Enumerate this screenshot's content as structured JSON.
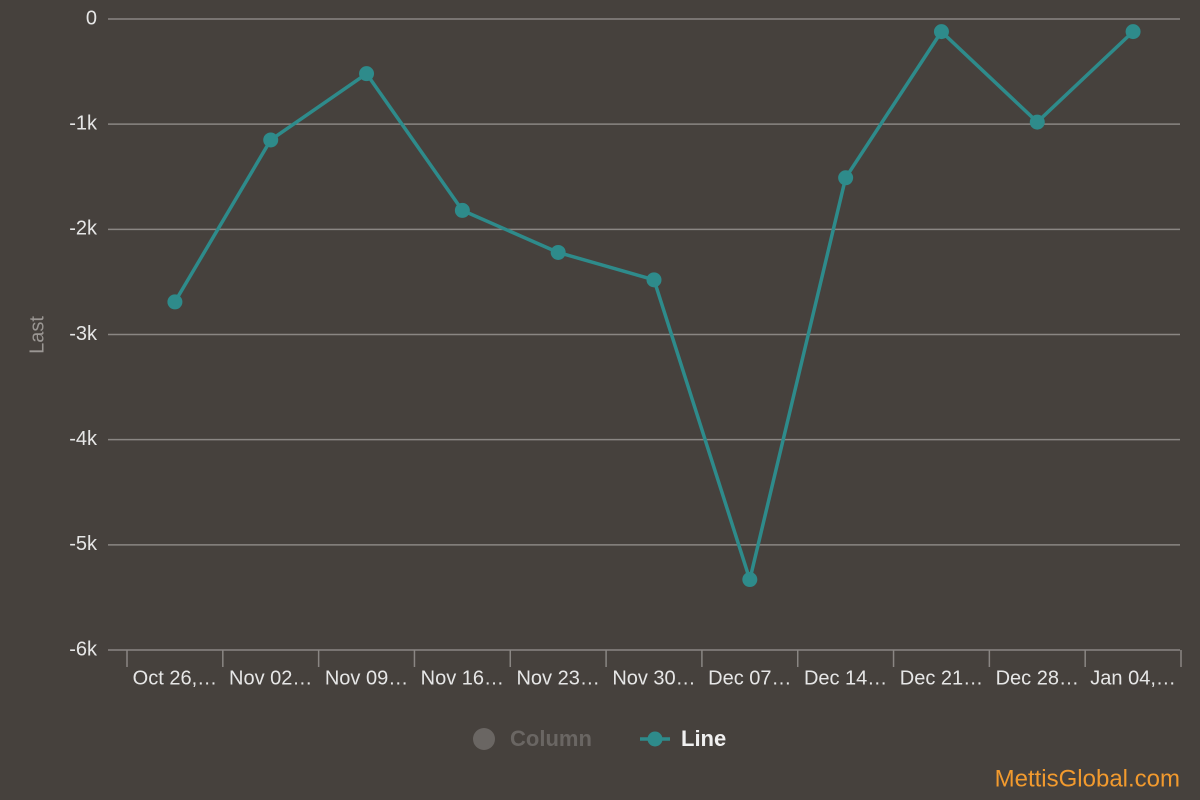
{
  "chart_data": {
    "type": "line",
    "y_label": "Last",
    "categories": [
      "Oct 26,…",
      "Nov 02…",
      "Nov 09…",
      "Nov 16…",
      "Nov 23…",
      "Nov 30…",
      "Dec 07…",
      "Dec 14…",
      "Dec 21…",
      "Dec 28…",
      "Jan 04,…"
    ],
    "series": [
      {
        "name": "Column",
        "color": "#6a6663",
        "visible": false
      },
      {
        "name": "Line",
        "color": "#2e8b8b",
        "visible": true,
        "values": [
          -2690,
          -1150,
          -520,
          -1820,
          -2220,
          -2480,
          -5330,
          -1510,
          -120,
          -980,
          -120
        ]
      }
    ],
    "ylim": [
      -6000,
      0
    ],
    "yticks": [
      {
        "value": 0,
        "label": "0"
      },
      {
        "value": -1000,
        "label": "-1k"
      },
      {
        "value": -2000,
        "label": "-2k"
      },
      {
        "value": -3000,
        "label": "-3k"
      },
      {
        "value": -4000,
        "label": "-4k"
      },
      {
        "value": -5000,
        "label": "-5k"
      },
      {
        "value": -6000,
        "label": "-6k"
      }
    ],
    "grid": true,
    "legend": "bottom",
    "watermark": "MettisGlobal.com"
  }
}
